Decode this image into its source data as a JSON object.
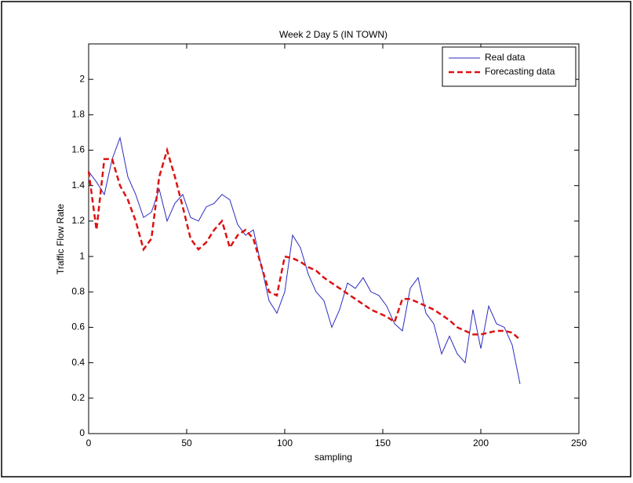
{
  "chart_data": {
    "type": "line",
    "title": "Week 2 Day 5 (IN TOWN)",
    "x_label": "sampling",
    "y_label": "Traffic Flow Rate",
    "x": [
      0,
      4,
      8,
      12,
      16,
      20,
      24,
      28,
      32,
      36,
      40,
      44,
      48,
      52,
      56,
      60,
      64,
      68,
      72,
      76,
      80,
      84,
      88,
      92,
      96,
      100,
      104,
      108,
      112,
      116,
      120,
      124,
      128,
      132,
      136,
      140,
      144,
      148,
      152,
      156,
      160,
      164,
      168,
      172,
      176,
      180,
      184,
      188,
      192,
      196,
      200,
      204,
      208,
      212,
      216,
      220
    ],
    "series": [
      {
        "name": "Real data",
        "color": "#2b2bbf",
        "dash": false,
        "values": [
          1.48,
          1.42,
          1.35,
          1.55,
          1.67,
          1.45,
          1.35,
          1.22,
          1.25,
          1.38,
          1.2,
          1.3,
          1.35,
          1.22,
          1.2,
          1.28,
          1.3,
          1.35,
          1.32,
          1.18,
          1.12,
          1.15,
          0.95,
          0.75,
          0.68,
          0.8,
          1.12,
          1.05,
          0.9,
          0.8,
          0.75,
          0.6,
          0.7,
          0.85,
          0.82,
          0.88,
          0.8,
          0.78,
          0.72,
          0.62,
          0.58,
          0.82,
          0.88,
          0.68,
          0.62,
          0.45,
          0.55,
          0.45,
          0.4,
          0.7,
          0.48,
          0.72,
          0.62,
          0.6,
          0.5,
          0.28
        ]
      },
      {
        "name": "Forecasting data",
        "color": "#dd1111",
        "dash": true,
        "values": [
          1.48,
          1.15,
          1.55,
          1.55,
          1.4,
          1.32,
          1.2,
          1.04,
          1.1,
          1.45,
          1.6,
          1.45,
          1.28,
          1.1,
          1.04,
          1.08,
          1.15,
          1.2,
          1.05,
          1.12,
          1.15,
          1.1,
          0.95,
          0.8,
          0.78,
          1.0,
          0.99,
          0.97,
          0.94,
          0.92,
          0.88,
          0.85,
          0.82,
          0.79,
          0.76,
          0.73,
          0.7,
          0.68,
          0.66,
          0.63,
          0.76,
          0.76,
          0.74,
          0.72,
          0.7,
          0.67,
          0.64,
          0.6,
          0.58,
          0.56,
          0.56,
          0.57,
          0.58,
          0.58,
          0.57,
          0.53
        ]
      }
    ],
    "xlim": [
      0,
      250
    ],
    "xticks": [
      0,
      50,
      100,
      150,
      200,
      250
    ],
    "ylim": [
      0,
      2.2
    ],
    "yticks": [
      0,
      0.2,
      0.4,
      0.6,
      0.8,
      1,
      1.2,
      1.4,
      1.6,
      1.8,
      2
    ],
    "legend": "top-right"
  }
}
